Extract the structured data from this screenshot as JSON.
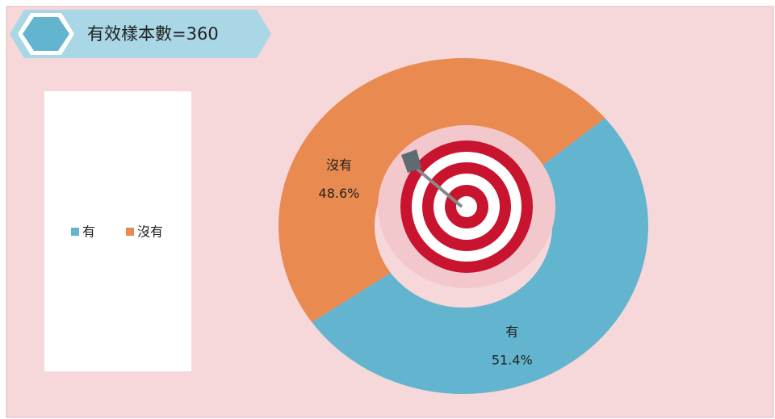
{
  "chart_data": {
    "type": "donut",
    "title": "有效樣本數=360",
    "categories": [
      "有",
      "沒有"
    ],
    "values": [
      51.4,
      48.6
    ],
    "value_labels": [
      "51.4%",
      "48.6%"
    ],
    "colors": [
      "#62b4cf",
      "#e98a50"
    ],
    "legend": "left"
  }
}
